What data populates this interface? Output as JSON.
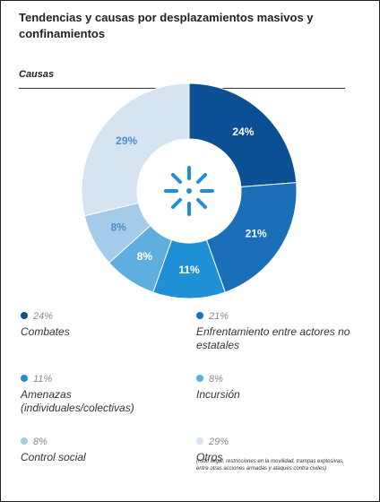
{
  "chart_data": {
    "type": "donut",
    "title": "Tendencias y causas por desplazamientos masivos y confinamientos",
    "subtitle": "Causas",
    "categories": [
      "Combates",
      "Enfrentamiento entre actores no estatales",
      "Amenazas (individuales/colectivas)",
      "Incursión",
      "Control social",
      "Otros"
    ],
    "values": [
      24,
      21,
      11,
      8,
      8,
      29
    ],
    "value_labels": [
      "24%",
      "21%",
      "11%",
      "8%",
      "8%",
      "29%"
    ],
    "colors": [
      "#0b4f94",
      "#1a6fb8",
      "#1f8fd6",
      "#5eaee0",
      "#a4cbe9",
      "#d6e4f2"
    ],
    "label_colors": [
      "#ffffff",
      "#ffffff",
      "#ffffff",
      "#ffffff",
      "#4a8fd0",
      "#4a8fd0"
    ],
    "other_note": "(robo ilegal, restricciones en la movilidad, trampas explosivas, entre otras acciones armadas y ataques contra civiles)"
  }
}
